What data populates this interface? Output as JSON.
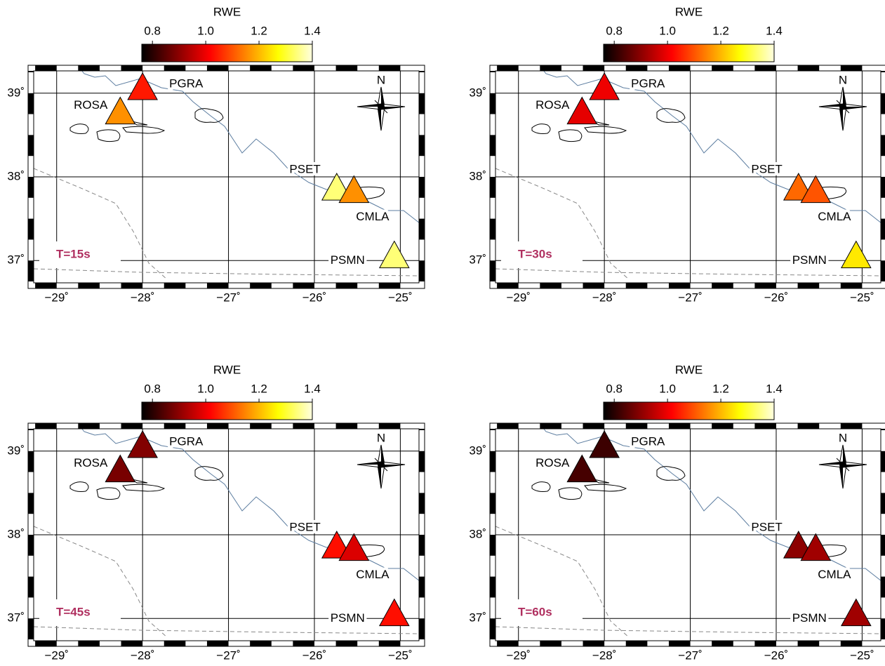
{
  "colorbar": {
    "label": "RWE",
    "range": [
      0.76,
      1.4
    ],
    "ticks": [
      0.8,
      {
        "value": 1.0,
        "label": "1.0"
      },
      1.2,
      1.4
    ],
    "colors": [
      "#000000",
      "#800000",
      "#ff0000",
      "#ff8000",
      "#ffff00",
      "#ffffe0"
    ]
  },
  "map": {
    "lon_range": [
      -29.3,
      -24.75
    ],
    "lat_range": [
      36.7,
      39.3
    ],
    "lon_ticks": [
      {
        "value": -29,
        "label": "−29˚"
      },
      {
        "value": -28,
        "label": "−28˚"
      },
      {
        "value": -27,
        "label": "−27˚"
      },
      {
        "value": -26,
        "label": "−26˚"
      },
      {
        "value": -25,
        "label": "−25˚"
      }
    ],
    "lat_ticks": [
      {
        "value": 39,
        "label": "39˚"
      },
      {
        "value": 38,
        "label": "38˚"
      },
      {
        "value": 37,
        "label": "37˚"
      }
    ],
    "compass": "N"
  },
  "stations": [
    {
      "name": "PGRA",
      "lon": -28.0,
      "lat": 39.04
    },
    {
      "name": "ROSA",
      "lon": -28.26,
      "lat": 38.75
    },
    {
      "name": "PSET",
      "lon": -25.74,
      "lat": 37.84
    },
    {
      "name": "CMLA",
      "lon": -25.54,
      "lat": 37.81
    },
    {
      "name": "PSMN",
      "lon": -25.07,
      "lat": 37.03
    }
  ],
  "panels": [
    {
      "label": "T=15s",
      "rwe": [
        1.04,
        1.16,
        1.34,
        1.16,
        1.34
      ]
    },
    {
      "label": "T=30s",
      "rwe": [
        1.0,
        0.99,
        1.12,
        1.1,
        1.25
      ]
    },
    {
      "label": "T=45s",
      "rwe": [
        0.89,
        0.88,
        1.03,
        0.98,
        1.03
      ]
    },
    {
      "label": "T=60s",
      "rwe": [
        0.82,
        0.83,
        0.9,
        0.92,
        0.92
      ]
    }
  ]
}
